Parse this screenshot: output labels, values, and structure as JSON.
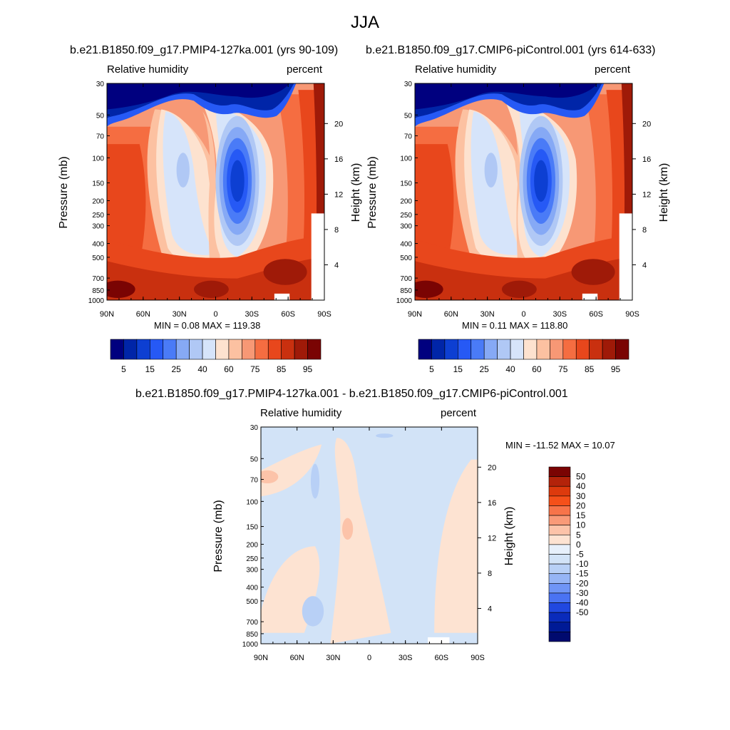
{
  "figure": {
    "title": "JJA"
  },
  "panels": [
    {
      "id": "left",
      "title": "b.e21.B1850.f09_g17.PMIP4-127ka.001 (yrs 90-109)",
      "left_label": "Relative humidity",
      "right_label": "percent",
      "ylabel": "Pressure (mb)",
      "ylabel_right": "Height (km)",
      "minmax": "MIN =   0.08  MAX = 119.38"
    },
    {
      "id": "right",
      "title": "b.e21.B1850.f09_g17.CMIP6-piControl.001 (yrs 614-633)",
      "left_label": "Relative humidity",
      "right_label": "percent",
      "ylabel": "Pressure (mb)",
      "ylabel_right": "Height (km)",
      "minmax": "MIN =   0.11  MAX = 118.80"
    },
    {
      "id": "diff",
      "title": "b.e21.B1850.f09_g17.PMIP4-127ka.001 - b.e21.B1850.f09_g17.CMIP6-piControl.001",
      "left_label": "Relative humidity",
      "right_label": "percent",
      "ylabel": "Pressure (mb)",
      "ylabel_right": "Height (km)",
      "minmax": "MIN = -11.52  MAX =  10.07"
    }
  ],
  "chart_data": [
    {
      "type": "heatmap",
      "panel": "left",
      "title": "b.e21.B1850.f09_g17.PMIP4-127ka.001 (yrs 90-109)",
      "xlabel": "",
      "ylabel": "Pressure (mb)",
      "ylabel_right": "Height (km)",
      "x_ticks": [
        "90N",
        "60N",
        "30N",
        "0",
        "30S",
        "60S",
        "90S"
      ],
      "y_ticks": [
        30,
        50,
        70,
        100,
        150,
        200,
        250,
        300,
        400,
        500,
        700,
        850,
        1000
      ],
      "y_ticks_right": [
        20,
        16,
        12,
        8,
        4
      ],
      "colorbar_labels": [
        "5",
        "15",
        "25",
        "40",
        "60",
        "75",
        "85",
        "95"
      ],
      "min": 0.08,
      "max": 119.38
    },
    {
      "type": "heatmap",
      "panel": "right",
      "title": "b.e21.B1850.f09_g17.CMIP6-piControl.001 (yrs 614-633)",
      "xlabel": "",
      "ylabel": "Pressure (mb)",
      "ylabel_right": "Height (km)",
      "x_ticks": [
        "90N",
        "60N",
        "30N",
        "0",
        "30S",
        "60S",
        "90S"
      ],
      "y_ticks": [
        30,
        50,
        70,
        100,
        150,
        200,
        250,
        300,
        400,
        500,
        700,
        850,
        1000
      ],
      "y_ticks_right": [
        20,
        16,
        12,
        8,
        4
      ],
      "colorbar_labels": [
        "5",
        "15",
        "25",
        "40",
        "60",
        "75",
        "85",
        "95"
      ],
      "min": 0.11,
      "max": 118.8
    },
    {
      "type": "heatmap",
      "panel": "diff",
      "title": "b.e21.B1850.f09_g17.PMIP4-127ka.001 - b.e21.B1850.f09_g17.CMIP6-piControl.001",
      "xlabel": "",
      "ylabel": "Pressure (mb)",
      "ylabel_right": "Height (km)",
      "x_ticks": [
        "90N",
        "60N",
        "30N",
        "0",
        "30S",
        "60S",
        "90S"
      ],
      "y_ticks": [
        30,
        50,
        70,
        100,
        150,
        200,
        250,
        300,
        400,
        500,
        700,
        850,
        1000
      ],
      "y_ticks_right": [
        20,
        16,
        12,
        8,
        4
      ],
      "colorbar_labels": [
        "50",
        "40",
        "30",
        "20",
        "15",
        "10",
        "5",
        "0",
        "-5",
        "-10",
        "-15",
        "-20",
        "-30",
        "-40",
        "-50"
      ],
      "min": -11.52,
      "max": 10.07
    }
  ],
  "colors": {
    "rh_levels": [
      "#00007f",
      "#0025a8",
      "#0d3fd2",
      "#2659f5",
      "#4a7bf7",
      "#86a9f5",
      "#b0c8f5",
      "#d6e4fa",
      "#fde2cf",
      "#fcc1a1",
      "#f79875",
      "#f56d41",
      "#e8471c",
      "#c9300f",
      "#9f1a08",
      "#7a0403"
    ],
    "diff_levels": [
      "#7a0403",
      "#b3230a",
      "#dd3a0d",
      "#f5501a",
      "#f7744a",
      "#f99a78",
      "#fcc3a9",
      "#fde3d2",
      "#e7f0fb",
      "#d2e3f7",
      "#b8d0f6",
      "#96b5f5",
      "#6f95f6",
      "#4a73f3",
      "#2148e0",
      "#0a2bbb",
      "#001a96",
      "#000a6e"
    ]
  }
}
